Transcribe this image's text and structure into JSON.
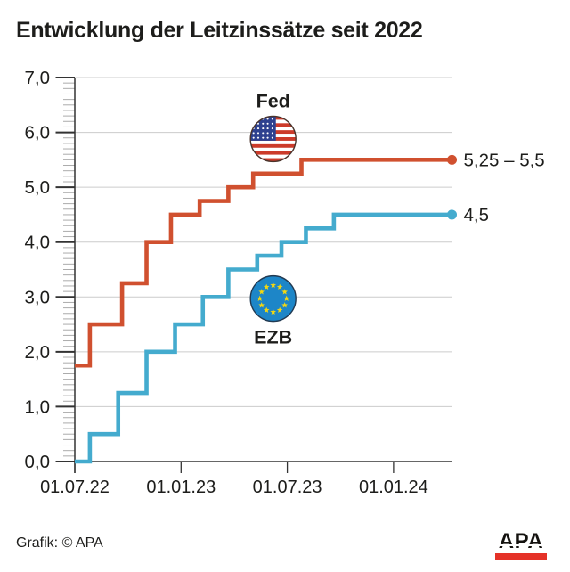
{
  "page": {
    "title": "Entwicklung der Leitzinssätze seit 2022",
    "credit": "Grafik: © APA",
    "logo_text": "APA"
  },
  "chart_data": {
    "type": "line",
    "subtype": "step",
    "title": "Entwicklung der Leitzinssätze seit 2022",
    "grid": "horizontal",
    "legend_position": "inline-annotations",
    "ylim": [
      0,
      7
    ],
    "y_minor_step": 0.1,
    "y_ticks": [
      {
        "v": 7,
        "label": "7,0"
      },
      {
        "v": 6,
        "label": "6,0"
      },
      {
        "v": 5,
        "label": "5,0"
      },
      {
        "v": 4,
        "label": "4,0"
      },
      {
        "v": 3,
        "label": "3,0"
      },
      {
        "v": 2,
        "label": "2,0"
      },
      {
        "v": 1,
        "label": "1,0"
      },
      {
        "v": 0,
        "label": "0,0"
      }
    ],
    "x_unit": "months since 01.07.22",
    "x_max_months": 21.3,
    "x_ticks": [
      {
        "m": 0,
        "label": "01.07.22"
      },
      {
        "m": 6,
        "label": "01.01.23"
      },
      {
        "m": 12,
        "label": "01.07.23"
      },
      {
        "m": 18,
        "label": "01.01.24"
      }
    ],
    "series": [
      {
        "name": "Fed",
        "flag": "us",
        "color": "#d0502f",
        "end_label": "5,25 – 5,5",
        "end_value": 5.5,
        "steps": [
          {
            "m": 0,
            "v": 1.75
          },
          {
            "m": 0.85,
            "v": 2.5
          },
          {
            "m": 2.67,
            "v": 3.25
          },
          {
            "m": 4.05,
            "v": 4.0
          },
          {
            "m": 5.43,
            "v": 4.5
          },
          {
            "m": 7.05,
            "v": 4.75
          },
          {
            "m": 8.67,
            "v": 5.0
          },
          {
            "m": 10.07,
            "v": 5.25
          },
          {
            "m": 12.8,
            "v": 5.5
          }
        ]
      },
      {
        "name": "EZB",
        "flag": "eu",
        "color": "#44abce",
        "end_label": "4,5",
        "end_value": 4.5,
        "steps": [
          {
            "m": 0,
            "v": 0.0
          },
          {
            "m": 0.85,
            "v": 0.5
          },
          {
            "m": 2.45,
            "v": 1.25
          },
          {
            "m": 4.05,
            "v": 2.0
          },
          {
            "m": 5.66,
            "v": 2.5
          },
          {
            "m": 7.23,
            "v": 3.0
          },
          {
            "m": 8.67,
            "v": 3.5
          },
          {
            "m": 10.3,
            "v": 3.75
          },
          {
            "m": 11.67,
            "v": 4.0
          },
          {
            "m": 13.05,
            "v": 4.25
          },
          {
            "m": 14.63,
            "v": 4.5
          }
        ]
      }
    ],
    "annotations": [
      {
        "series": "Fed",
        "label": "Fed",
        "flag": "us",
        "x_month": 11.2,
        "y_value": 5.88,
        "label_side": "above"
      },
      {
        "series": "EZB",
        "label": "EZB",
        "flag": "eu",
        "x_month": 11.2,
        "y_value": 2.97,
        "label_side": "below"
      }
    ],
    "colors": {
      "fed_line": "#d0502f",
      "ezb_line": "#44abce",
      "grid": "#cccccc",
      "axis": "#333333",
      "minor_tick": "#ababab",
      "text": "#1d1d1b",
      "us_flag_red": "#cc3b2a",
      "us_flag_blue": "#2e418f",
      "eu_flag_blue": "#1d86c8",
      "eu_star_yellow": "#f2d713",
      "apa_red": "#e53228"
    }
  }
}
